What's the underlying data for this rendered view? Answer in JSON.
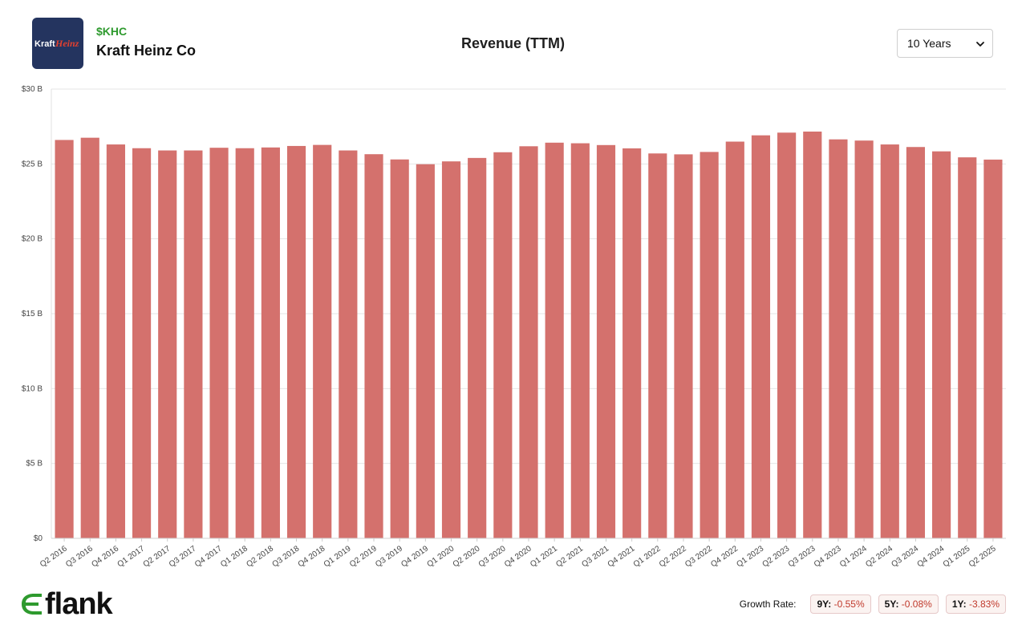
{
  "header": {
    "ticker": "$KHC",
    "company_name": "Kraft Heinz Co",
    "logo_text_1": "Kraft",
    "logo_text_2": "Heinz",
    "period_select": {
      "selected": "10 Years"
    }
  },
  "chart_data": {
    "type": "bar",
    "title": "Revenue (TTM)",
    "xlabel": "",
    "ylabel": "",
    "ylim": [
      0,
      30
    ],
    "y_unit": "B",
    "y_ticks": [
      0,
      5,
      10,
      15,
      20,
      25,
      30
    ],
    "y_tick_labels": [
      "$0",
      "$5 B",
      "$10 B",
      "$15 B",
      "$20 B",
      "$25 B",
      "$30 B"
    ],
    "grid": true,
    "bar_color": "#d4716d",
    "categories": [
      "Q2 2016",
      "Q3 2016",
      "Q4 2016",
      "Q1 2017",
      "Q2 2017",
      "Q3 2017",
      "Q4 2017",
      "Q1 2018",
      "Q2 2018",
      "Q3 2018",
      "Q4 2018",
      "Q1 2019",
      "Q2 2019",
      "Q3 2019",
      "Q4 2019",
      "Q1 2020",
      "Q2 2020",
      "Q3 2020",
      "Q4 2020",
      "Q1 2021",
      "Q2 2021",
      "Q3 2021",
      "Q4 2021",
      "Q1 2022",
      "Q2 2022",
      "Q3 2022",
      "Q4 2022",
      "Q1 2023",
      "Q2 2023",
      "Q3 2023",
      "Q4 2023",
      "Q1 2024",
      "Q2 2024",
      "Q3 2024",
      "Q4 2024",
      "Q1 2025",
      "Q2 2025"
    ],
    "values": [
      26.6,
      26.75,
      26.3,
      26.05,
      25.9,
      25.9,
      26.08,
      26.05,
      26.1,
      26.2,
      26.27,
      25.9,
      25.65,
      25.3,
      24.98,
      25.17,
      25.4,
      25.78,
      26.18,
      26.42,
      26.38,
      26.26,
      26.04,
      25.7,
      25.64,
      25.8,
      26.49,
      26.91,
      27.09,
      27.16,
      26.64,
      26.56,
      26.3,
      26.13,
      25.84,
      25.44,
      25.29
    ]
  },
  "footer": {
    "brand": "flank",
    "growth_label": "Growth Rate:",
    "growth": [
      {
        "period": "9Y:",
        "value": "-0.55%"
      },
      {
        "period": "5Y:",
        "value": "-0.08%"
      },
      {
        "period": "1Y:",
        "value": "-3.83%"
      }
    ],
    "negative_color": "#c0392b"
  }
}
